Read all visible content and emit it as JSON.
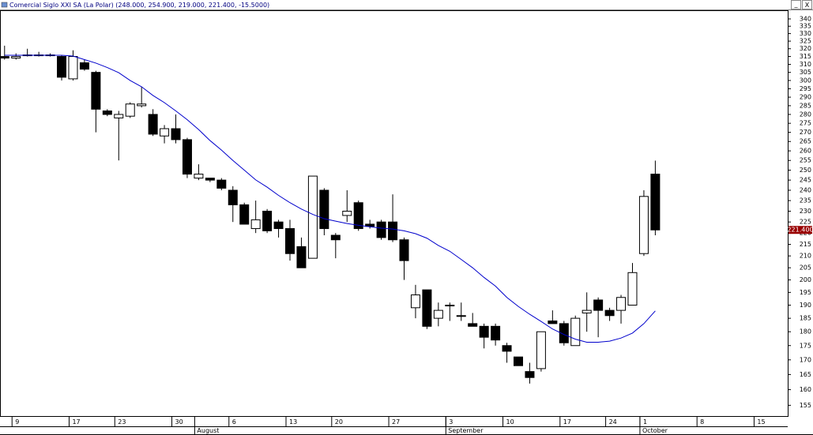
{
  "window": {
    "controls": [
      "_",
      "X"
    ]
  },
  "chart_data": {
    "type": "candlestick",
    "title": "Comercial Siglo XXI SA (La Polar) (248.000, 254.900, 219.000, 221.400, -15.5000)",
    "x": [
      0,
      1,
      2,
      3,
      4,
      5,
      6,
      7,
      8,
      9,
      10,
      11,
      12,
      13,
      14,
      15,
      16,
      17,
      18,
      19,
      20,
      21,
      22,
      23,
      24,
      25,
      26,
      27,
      28,
      29,
      30,
      31,
      32,
      33,
      34,
      35,
      36,
      37,
      38,
      39,
      40,
      41,
      42,
      43,
      44,
      45,
      46,
      47,
      48,
      49,
      50,
      51,
      52,
      53,
      54,
      55,
      56,
      57
    ],
    "open": [
      315,
      314,
      316,
      316,
      316,
      315,
      301,
      311,
      305,
      282,
      278,
      279,
      285,
      280,
      268,
      272,
      266,
      246,
      246,
      245,
      240,
      233,
      222,
      230,
      225,
      222,
      214,
      209,
      240,
      219,
      228,
      234,
      224,
      225,
      225,
      217,
      189,
      196,
      185,
      190,
      186,
      183,
      182,
      182,
      175,
      171,
      166,
      167,
      184,
      183,
      175,
      187,
      192,
      188,
      188,
      190,
      211,
      248
    ],
    "high": [
      322,
      317,
      320,
      318,
      317,
      316,
      319,
      313,
      306,
      283,
      282,
      287,
      296,
      283,
      274,
      280,
      267,
      253,
      246,
      246,
      242,
      234,
      235,
      231,
      226,
      226,
      218,
      247,
      241,
      220,
      240,
      235,
      226,
      226,
      238,
      218,
      198,
      196,
      191,
      191,
      191,
      187,
      183,
      183,
      176,
      171,
      169,
      180,
      188,
      184,
      186,
      195,
      193,
      189,
      194,
      207,
      240,
      254.9
    ],
    "low": [
      313,
      313,
      315,
      315,
      315,
      300,
      300,
      306,
      270,
      279,
      255,
      278,
      284,
      268,
      264,
      264,
      246,
      245,
      244,
      240,
      225,
      224,
      220,
      220,
      218,
      208,
      205,
      209,
      219,
      209,
      225,
      221,
      222,
      217,
      216,
      200,
      185,
      181,
      182,
      184,
      184,
      182,
      174,
      175,
      169,
      168,
      162,
      166,
      183,
      175,
      175,
      180,
      178,
      184,
      183,
      190,
      210,
      219
    ],
    "close": [
      314,
      315,
      316,
      316,
      316,
      302,
      315,
      307,
      283,
      280,
      280,
      286,
      286,
      269,
      272,
      266,
      248,
      248,
      245,
      241,
      233,
      224,
      226,
      221,
      222,
      211,
      205,
      247,
      222,
      217,
      230,
      222,
      223,
      218,
      217,
      208,
      194,
      182,
      188,
      190,
      186,
      182,
      178,
      177,
      173,
      168,
      164,
      180,
      183,
      176,
      185,
      188,
      188,
      186,
      193,
      203,
      237,
      221.4
    ],
    "series": [
      {
        "color": "#0000cc",
        "values": [
          315.8,
          315.8,
          315.8,
          315.8,
          315.8,
          315.8,
          315.3,
          313,
          310.8,
          308,
          304.8,
          300,
          296.2,
          291,
          286.8,
          282,
          277,
          271.5,
          265.5,
          260.4,
          255,
          250,
          245.1,
          241.5,
          237.5,
          234,
          231,
          228.5,
          226.5,
          225.4,
          224.3,
          223.5,
          222.8,
          222.2,
          221.8,
          221,
          219.7,
          217.7,
          214.5,
          212,
          208.5,
          205,
          201,
          197.5,
          193,
          189.5,
          186.5,
          183.8,
          181,
          179,
          177.3,
          176.2,
          176.2,
          176.6,
          177.7,
          179.5,
          183,
          187.8
        ]
      }
    ],
    "up_color": "#ffffff",
    "down_color": "#000000",
    "xlim": [
      -0.4,
      68.6
    ],
    "xticks": [
      {
        "value": 1,
        "label": "9"
      },
      {
        "value": 6,
        "label": "17"
      },
      {
        "value": 10,
        "label": "23"
      },
      {
        "value": 15,
        "label": "30"
      },
      {
        "value": 20,
        "label": "6"
      },
      {
        "value": 25,
        "label": "13"
      },
      {
        "value": 29,
        "label": "20"
      },
      {
        "value": 34,
        "label": "27"
      },
      {
        "value": 39,
        "label": "3"
      },
      {
        "value": 44,
        "label": "10"
      },
      {
        "value": 49,
        "label": "17"
      },
      {
        "value": 53,
        "label": "24"
      },
      {
        "value": 56,
        "label": "1"
      },
      {
        "value": 61,
        "label": "8"
      },
      {
        "value": 66,
        "label": "15"
      }
    ],
    "month_ticks": [
      {
        "value": 17,
        "label": "August"
      },
      {
        "value": 39,
        "label": "September"
      },
      {
        "value": 56,
        "label": "October"
      }
    ],
    "ylim": [
      151.4,
      346.6
    ],
    "log_scale": true,
    "yticks": [
      155,
      160,
      165,
      170,
      175,
      180,
      185,
      190,
      195,
      200,
      205,
      210,
      215,
      220,
      225,
      230,
      235,
      240,
      245,
      250,
      255,
      260,
      265,
      270,
      275,
      280,
      285,
      290,
      295,
      300,
      305,
      310,
      315,
      320,
      325,
      330,
      335,
      340
    ],
    "last_price": {
      "value": 221.4,
      "label": "221.400",
      "color": "#990000"
    }
  }
}
